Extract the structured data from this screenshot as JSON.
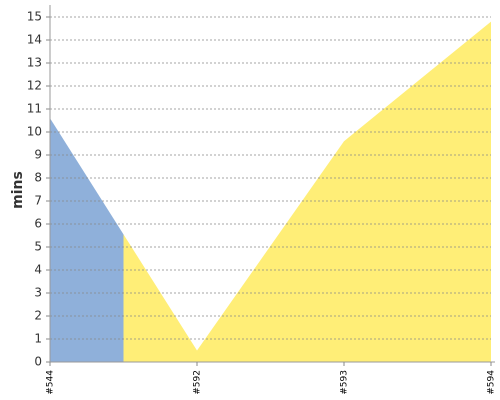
{
  "chart_data": {
    "type": "area",
    "y_label": "mins",
    "categories": [
      "#544",
      "#592",
      "#593",
      "#594"
    ],
    "series": [
      {
        "values": [
          10.6,
          0.5,
          9.6,
          14.8
        ],
        "colors": [
          "#8fb0da",
          "#ffee77",
          "#ffee77",
          "#ffee77"
        ]
      }
    ],
    "ylim": [
      0,
      15
    ],
    "yticks": [
      0,
      1,
      2,
      3,
      4,
      5,
      6,
      7,
      8,
      9,
      10,
      11,
      12,
      13,
      14,
      15
    ],
    "grid": true
  }
}
